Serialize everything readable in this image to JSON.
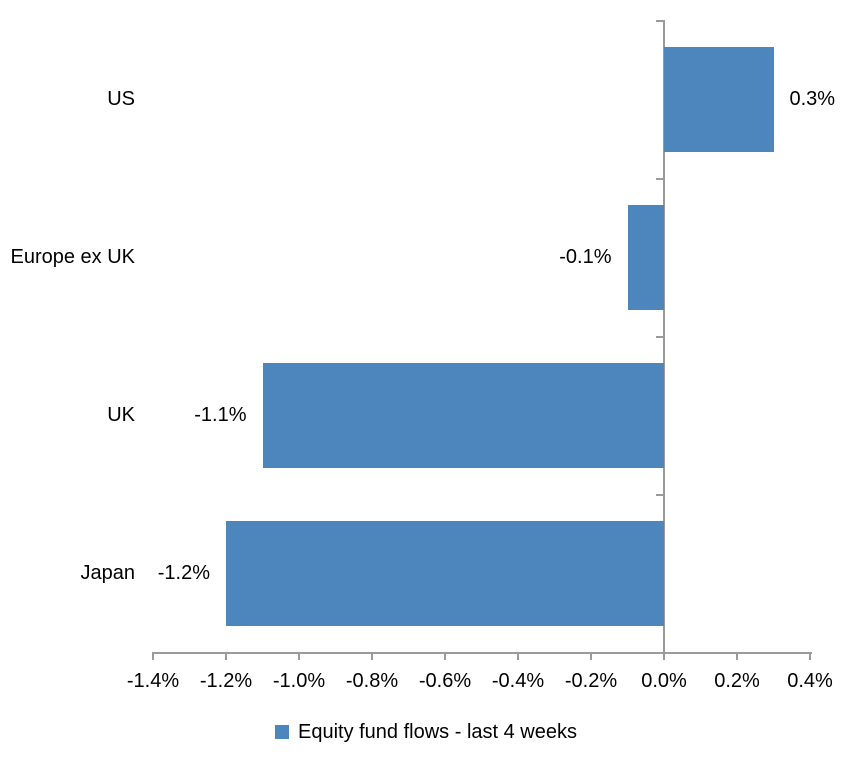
{
  "chart_data": {
    "type": "bar",
    "orientation": "horizontal",
    "title": "",
    "categories": [
      "US",
      "Europe ex UK",
      "UK",
      "Japan"
    ],
    "values": [
      0.3,
      -0.1,
      -1.1,
      -1.2
    ],
    "value_labels": [
      "0.3%",
      "-0.1%",
      "-1.1%",
      "-1.2%"
    ],
    "value_unit": "%",
    "xlabel": "",
    "ylabel": "",
    "xlim": [
      -1.4,
      0.4
    ],
    "x_tick_step": 0.2,
    "x_tick_labels": [
      "-1.4%",
      "-1.2%",
      "-1.0%",
      "-0.8%",
      "-0.6%",
      "-0.4%",
      "-0.2%",
      "0.0%",
      "0.2%",
      "0.4%"
    ],
    "grid": false,
    "data_labels": "outside-end",
    "legend": {
      "label": "Equity fund flows - last 4 weeks",
      "position": "bottom"
    },
    "colors": {
      "bar": "#4d86bd",
      "axis": "#9a9a9a",
      "text": "#000000",
      "background": "#ffffff"
    }
  }
}
